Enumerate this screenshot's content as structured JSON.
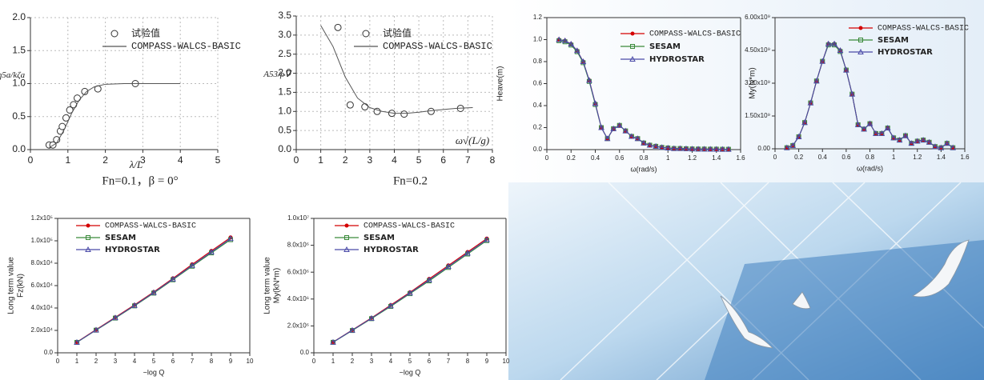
{
  "chart_data": [
    {
      "type": "line",
      "caption": "Fn=0.1，β = 0°",
      "xlabel": "λ/L",
      "ylabel": "η5a/kζa",
      "grid": true,
      "frame": false,
      "xlim": [
        0,
        5
      ],
      "xticks": [
        0,
        1,
        2,
        3,
        4,
        5
      ],
      "ylim": [
        0,
        2
      ],
      "yticks": [
        {
          "value": 0,
          "label": "0.0"
        },
        0.5,
        {
          "value": 1,
          "label": "1.0"
        },
        1.5,
        {
          "value": 2,
          "label": "2.0"
        }
      ],
      "series": [
        {
          "name": "试验值",
          "mode": "markers",
          "marker": "circle",
          "color": "#333333",
          "x": [
            0.5,
            0.6,
            0.7,
            0.8,
            0.85,
            0.95,
            1.05,
            1.15,
            1.25,
            1.45,
            1.8,
            2.8
          ],
          "values": [
            0.07,
            0.07,
            0.15,
            0.28,
            0.35,
            0.48,
            0.6,
            0.68,
            0.78,
            0.88,
            0.92,
            1.0
          ]
        },
        {
          "name": "COMPASS-WALCS-BASIC",
          "mode": "line",
          "color": "#555555",
          "x": [
            0.5,
            0.7,
            0.9,
            1.1,
            1.3,
            1.5,
            1.7,
            2.0,
            2.5,
            3.0,
            4.0
          ],
          "values": [
            0.03,
            0.1,
            0.3,
            0.55,
            0.75,
            0.88,
            0.95,
            0.99,
            1.0,
            1.0,
            1.0
          ]
        }
      ]
    },
    {
      "type": "line",
      "caption": "Fn=0.2",
      "xlabel": "ω√(L/g)",
      "ylabel": "A53/ρ∇",
      "grid": true,
      "frame": false,
      "xlim": [
        0,
        8
      ],
      "xticks": [
        0,
        1,
        2,
        3,
        4,
        5,
        6,
        7,
        8
      ],
      "ylim": [
        0,
        3.5
      ],
      "yticks": [
        {
          "value": 0,
          "label": "0.0"
        },
        0.5,
        {
          "value": 1,
          "label": "1.0"
        },
        1.5,
        {
          "value": 2,
          "label": "2.0"
        },
        2.5,
        {
          "value": 3,
          "label": "3.0"
        },
        3.5
      ],
      "series": [
        {
          "name": "试验值",
          "mode": "markers",
          "marker": "circle",
          "color": "#333333",
          "x": [
            1.7,
            2.2,
            2.8,
            3.3,
            3.9,
            4.4,
            5.5,
            6.7
          ],
          "values": [
            3.2,
            1.17,
            1.12,
            1.0,
            0.95,
            0.93,
            1.0,
            1.08
          ]
        },
        {
          "name": "COMPASS-WALCS-BASIC",
          "mode": "line",
          "color": "#555555",
          "x": [
            1.0,
            1.5,
            2.0,
            2.5,
            3.0,
            3.5,
            4.0,
            4.5,
            5.0,
            5.5,
            6.0,
            6.5,
            7.2
          ],
          "values": [
            3.25,
            2.7,
            1.9,
            1.35,
            1.1,
            1.0,
            0.95,
            0.95,
            0.98,
            1.02,
            1.05,
            1.08,
            1.1
          ]
        }
      ]
    },
    {
      "type": "line",
      "xlabel": "ω(rad/s)",
      "ylabel": "Heave(m)",
      "grid": false,
      "frame": true,
      "xlim": [
        0,
        1.6
      ],
      "xticks": [
        0,
        0.2,
        0.4,
        0.6,
        0.8,
        1,
        1.2,
        1.4,
        1.6
      ],
      "ylim": [
        0,
        1.2
      ],
      "yticks": [
        {
          "value": 0,
          "label": "0.0"
        },
        0.2,
        0.4,
        0.6,
        0.8,
        {
          "value": 1,
          "label": "1.0"
        },
        1.2
      ],
      "x": [
        0.1,
        0.15,
        0.2,
        0.25,
        0.3,
        0.35,
        0.4,
        0.45,
        0.5,
        0.55,
        0.6,
        0.65,
        0.7,
        0.75,
        0.8,
        0.85,
        0.9,
        0.95,
        1.0,
        1.05,
        1.1,
        1.15,
        1.2,
        1.25,
        1.3,
        1.35,
        1.4,
        1.45,
        1.5
      ],
      "series": [
        {
          "name": "COMPASS-WALCS-BASIC",
          "mode": "line+markers",
          "marker": "dot",
          "color": "#d40000",
          "values": [
            1.0,
            0.99,
            0.96,
            0.9,
            0.8,
            0.63,
            0.42,
            0.2,
            0.1,
            0.19,
            0.22,
            0.17,
            0.12,
            0.1,
            0.06,
            0.04,
            0.03,
            0.02,
            0.015,
            0.01,
            0.01,
            0.008,
            0.006,
            0.005,
            0.005,
            0.004,
            0.004,
            0.003,
            0.003
          ]
        },
        {
          "name": "SESAM",
          "mode": "line+markers",
          "marker": "square",
          "color": "#3a8a3a",
          "values": [
            0.99,
            0.98,
            0.95,
            0.89,
            0.79,
            0.62,
            0.41,
            0.2,
            0.1,
            0.19,
            0.22,
            0.17,
            0.12,
            0.1,
            0.06,
            0.04,
            0.03,
            0.02,
            0.015,
            0.01,
            0.01,
            0.008,
            0.006,
            0.005,
            0.005,
            0.004,
            0.004,
            0.003,
            0.003
          ]
        },
        {
          "name": "HYDROSTAR",
          "mode": "line+markers",
          "marker": "triangle",
          "color": "#4a4aa8",
          "values": [
            1.0,
            0.99,
            0.96,
            0.9,
            0.8,
            0.63,
            0.42,
            0.2,
            0.1,
            0.19,
            0.22,
            0.17,
            0.12,
            0.1,
            0.06,
            0.04,
            0.03,
            0.02,
            0.015,
            0.01,
            0.01,
            0.008,
            0.006,
            0.005,
            0.005,
            0.004,
            0.004,
            0.003,
            0.003
          ]
        }
      ]
    },
    {
      "type": "line",
      "xlabel": "ω(rad/s)",
      "ylabel": "My(N*m)",
      "grid": false,
      "frame": true,
      "xlim": [
        0,
        1.6
      ],
      "xticks": [
        0,
        0.2,
        0.4,
        0.6,
        0.8,
        1,
        1.2,
        1.4,
        1.6
      ],
      "ylim": [
        0,
        6000000000.0
      ],
      "yticks": [
        {
          "value": 0,
          "label": "0.00"
        },
        {
          "value": 1500000000.0,
          "label": "1.50x10⁹"
        },
        {
          "value": 3000000000.0,
          "label": "3.00x10⁹"
        },
        {
          "value": 4500000000.0,
          "label": "4.50x10⁹"
        },
        {
          "value": 6000000000.0,
          "label": "6.00x10⁹"
        }
      ],
      "x": [
        0.1,
        0.15,
        0.2,
        0.25,
        0.3,
        0.35,
        0.4,
        0.45,
        0.5,
        0.55,
        0.6,
        0.65,
        0.7,
        0.75,
        0.8,
        0.85,
        0.9,
        0.95,
        1.0,
        1.05,
        1.1,
        1.15,
        1.2,
        1.25,
        1.3,
        1.35,
        1.4,
        1.45,
        1.5
      ],
      "series": [
        {
          "name": "COMPASS-WALCS-BASIC",
          "mode": "line+markers",
          "marker": "dot",
          "color": "#d40000",
          "values": [
            50000000.0,
            150000000.0,
            550000000.0,
            1200000000.0,
            2100000000.0,
            3100000000.0,
            4000000000.0,
            4800000000.0,
            4800000000.0,
            4500000000.0,
            3600000000.0,
            2500000000.0,
            1100000000.0,
            900000000.0,
            1150000000.0,
            700000000.0,
            700000000.0,
            950000000.0,
            500000000.0,
            400000000.0,
            600000000.0,
            250000000.0,
            350000000.0,
            400000000.0,
            300000000.0,
            100000000.0,
            50000000.0,
            250000000.0,
            50000000.0
          ]
        },
        {
          "name": "SESAM",
          "mode": "line+markers",
          "marker": "square",
          "color": "#3a8a3a",
          "values": [
            50000000.0,
            150000000.0,
            550000000.0,
            1200000000.0,
            2100000000.0,
            3100000000.0,
            4000000000.0,
            4750000000.0,
            4750000000.0,
            4450000000.0,
            3600000000.0,
            2500000000.0,
            1100000000.0,
            900000000.0,
            1150000000.0,
            700000000.0,
            700000000.0,
            950000000.0,
            500000000.0,
            400000000.0,
            600000000.0,
            250000000.0,
            350000000.0,
            400000000.0,
            300000000.0,
            100000000.0,
            50000000.0,
            250000000.0,
            50000000.0
          ]
        },
        {
          "name": "HYDROSTAR",
          "mode": "line+markers",
          "marker": "triangle",
          "color": "#4a4aa8",
          "values": [
            50000000.0,
            150000000.0,
            550000000.0,
            1200000000.0,
            2100000000.0,
            3100000000.0,
            4000000000.0,
            4800000000.0,
            4800000000.0,
            4500000000.0,
            3600000000.0,
            2500000000.0,
            1100000000.0,
            900000000.0,
            1150000000.0,
            700000000.0,
            700000000.0,
            950000000.0,
            500000000.0,
            400000000.0,
            600000000.0,
            250000000.0,
            350000000.0,
            400000000.0,
            300000000.0,
            100000000.0,
            50000000.0,
            250000000.0,
            50000000.0
          ]
        }
      ]
    },
    {
      "type": "line",
      "xlabel": "−log Q",
      "ylabel": [
        "Long term value",
        "Fz(kN)"
      ],
      "grid": false,
      "frame": true,
      "xlim": [
        0,
        10
      ],
      "xticks": [
        0,
        1,
        2,
        3,
        4,
        5,
        6,
        7,
        8,
        9,
        10
      ],
      "ylim": [
        0,
        120000
      ],
      "yticks": [
        {
          "value": 0,
          "label": "0.0"
        },
        {
          "value": 20000,
          "label": "2.0x10⁴"
        },
        {
          "value": 40000,
          "label": "4.0x10⁴"
        },
        {
          "value": 60000,
          "label": "6.0x10⁴"
        },
        {
          "value": 80000,
          "label": "8.0x10⁴"
        },
        {
          "value": 100000,
          "label": "1.0x10⁵"
        },
        {
          "value": 120000,
          "label": "1.2x10⁵"
        }
      ],
      "x": [
        1,
        2,
        3,
        4,
        5,
        6,
        7,
        8,
        9
      ],
      "series": [
        {
          "name": "COMPASS-WALCS-BASIC",
          "mode": "line+markers",
          "marker": "dot",
          "color": "#d40000",
          "values": [
            9600,
            20700,
            31700,
            42800,
            54300,
            66500,
            79000,
            91000,
            103000
          ]
        },
        {
          "name": "SESAM",
          "mode": "line+markers",
          "marker": "square",
          "color": "#3a8a3a",
          "values": [
            9300,
            20200,
            31000,
            41900,
            53300,
            65200,
            77300,
            89200,
            101000
          ]
        },
        {
          "name": "HYDROSTAR",
          "mode": "line+markers",
          "marker": "triangle",
          "color": "#4a4aa8",
          "values": [
            9400,
            20400,
            31300,
            42300,
            53800,
            65800,
            78000,
            90000,
            102000
          ]
        }
      ]
    },
    {
      "type": "line",
      "xlabel": "−log Q",
      "ylabel": [
        "Long term value",
        "My(kN*m)"
      ],
      "grid": false,
      "frame": true,
      "xlim": [
        0,
        10
      ],
      "xticks": [
        0,
        1,
        2,
        3,
        4,
        5,
        6,
        7,
        8,
        9,
        10
      ],
      "ylim": [
        0,
        10000000
      ],
      "yticks": [
        {
          "value": 0,
          "label": "0.0"
        },
        {
          "value": 2000000,
          "label": "2.0x10⁶"
        },
        {
          "value": 4000000,
          "label": "4.0x10⁶"
        },
        {
          "value": 6000000,
          "label": "6.0x10⁶"
        },
        {
          "value": 8000000,
          "label": "8.0x10⁶"
        },
        {
          "value": 10000000,
          "label": "1.0x10⁷"
        }
      ],
      "x": [
        1,
        2,
        3,
        4,
        5,
        6,
        7,
        8,
        9
      ],
      "series": [
        {
          "name": "COMPASS-WALCS-BASIC",
          "mode": "line+markers",
          "marker": "dot",
          "color": "#d40000",
          "values": [
            800000,
            1700000,
            2600000,
            3550000,
            4500000,
            5500000,
            6500000,
            7500000,
            8500000
          ]
        },
        {
          "name": "SESAM",
          "mode": "line+markers",
          "marker": "square",
          "color": "#3a8a3a",
          "values": [
            780000,
            1660000,
            2540000,
            3450000,
            4400000,
            5350000,
            6350000,
            7350000,
            8350000
          ]
        },
        {
          "name": "HYDROSTAR",
          "mode": "line+markers",
          "marker": "triangle",
          "color": "#4a4aa8",
          "values": [
            790000,
            1680000,
            2570000,
            3500000,
            4450000,
            5420000,
            6420000,
            7420000,
            8420000
          ]
        }
      ]
    }
  ]
}
